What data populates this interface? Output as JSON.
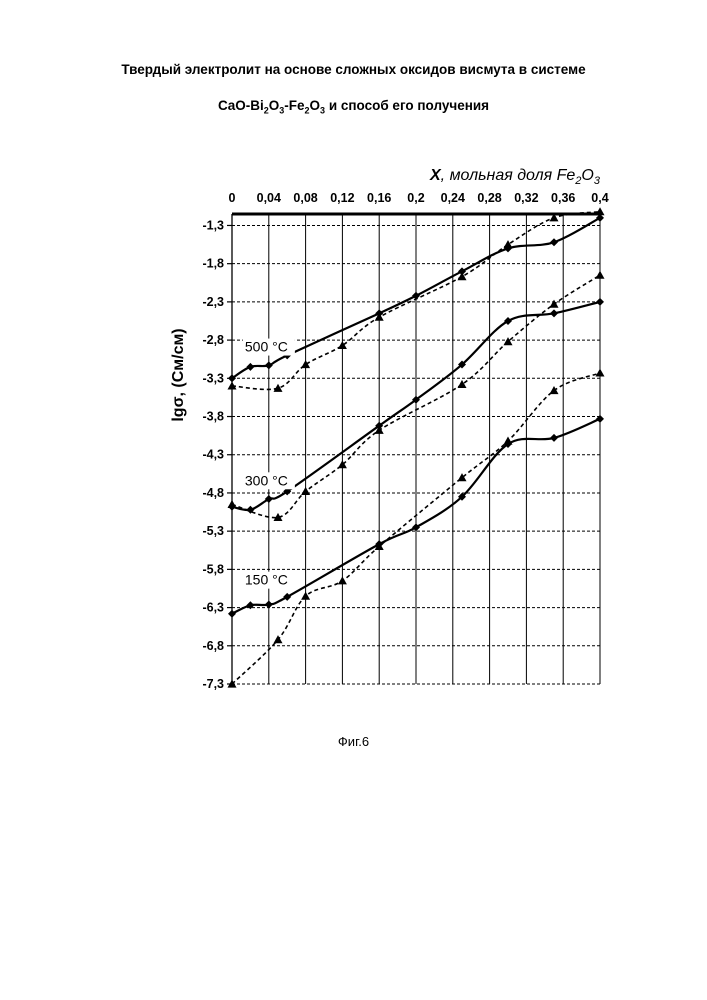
{
  "header": {
    "line1": "Твердый электролит на основе сложных оксидов висмута в системе",
    "line2_prefix": "CaO-Bi",
    "line2_sub1": "2",
    "line2_mid1": "O",
    "line2_sub2": "3",
    "line2_mid2": "-Fe",
    "line2_sub3": "2",
    "line2_mid3": "O",
    "line2_sub4": "3",
    "line2_suffix": "  и способ его получения"
  },
  "caption": "Фиг.6",
  "chart_data": {
    "type": "line",
    "x_axis": {
      "label_bold": "X",
      "label_text": ", мольная доля Fe",
      "label_sub1": "2",
      "label_o": "O",
      "label_sub2": "3",
      "position": "top",
      "range": [
        0,
        0.4
      ],
      "ticks": [
        0,
        0.04,
        0.08,
        0.12,
        0.16,
        0.2,
        0.24,
        0.28,
        0.32,
        0.36,
        0.4
      ],
      "tick_labels": [
        "0",
        "0,04",
        "0,08",
        "0,12",
        "0,16",
        "0,2",
        "0,24",
        "0,28",
        "0,32",
        "0,36",
        "0,4"
      ]
    },
    "y_axis": {
      "label": "lgσ, (См/см)",
      "range": [
        -7.3,
        -1.15
      ],
      "ticks": [
        -1.3,
        -1.8,
        -2.3,
        -2.8,
        -3.3,
        -3.8,
        -4.3,
        -4.8,
        -5.3,
        -5.8,
        -6.3,
        -6.8,
        -7.3
      ],
      "tick_labels": [
        "-1,3",
        "-1,8",
        "-2,3",
        "-2,8",
        "-3,3",
        "-3,8",
        "-4,3",
        "-4,8",
        "-5,3",
        "-5,8",
        "-6,3",
        "-6,8",
        "-7,3"
      ]
    },
    "grid": true,
    "annotations": [
      {
        "text": "500 °C",
        "x": 0.014,
        "y": -2.95
      },
      {
        "text": "300 °C",
        "x": 0.014,
        "y": -4.7
      },
      {
        "text": "150 °C",
        "x": 0.014,
        "y": -6.0
      }
    ],
    "series": [
      {
        "marker": "diamond",
        "style": "solid",
        "x": [
          0,
          0.02,
          0.04,
          0.06,
          0.16,
          0.2,
          0.25,
          0.3,
          0.35,
          0.4
        ],
        "y": [
          -3.3,
          -3.15,
          -3.13,
          -3.0,
          -2.45,
          -2.22,
          -1.9,
          -1.6,
          -1.52,
          -1.2
        ]
      },
      {
        "marker": "triangle",
        "style": "dashed",
        "x": [
          0,
          0.05,
          0.08,
          0.12,
          0.16,
          0.25,
          0.3,
          0.35,
          0.4
        ],
        "y": [
          -3.4,
          -3.43,
          -3.12,
          -2.87,
          -2.5,
          -1.97,
          -1.55,
          -1.2,
          -1.12
        ]
      },
      {
        "marker": "diamond",
        "style": "solid",
        "x": [
          0,
          0.02,
          0.04,
          0.06,
          0.16,
          0.2,
          0.25,
          0.3,
          0.35,
          0.4
        ],
        "y": [
          -4.98,
          -5.02,
          -4.88,
          -4.78,
          -3.92,
          -3.58,
          -3.12,
          -2.55,
          -2.45,
          -2.3
        ]
      },
      {
        "marker": "triangle",
        "style": "dashed",
        "x": [
          0,
          0.05,
          0.08,
          0.12,
          0.16,
          0.25,
          0.3,
          0.35,
          0.4
        ],
        "y": [
          -4.95,
          -5.12,
          -4.78,
          -4.43,
          -3.98,
          -3.38,
          -2.82,
          -2.33,
          -1.95
        ]
      },
      {
        "marker": "diamond",
        "style": "solid",
        "x": [
          0,
          0.02,
          0.04,
          0.06,
          0.16,
          0.2,
          0.25,
          0.3,
          0.35,
          0.4
        ],
        "y": [
          -6.38,
          -6.27,
          -6.26,
          -6.16,
          -5.47,
          -5.25,
          -4.85,
          -4.16,
          -4.08,
          -3.83
        ]
      },
      {
        "marker": "triangle",
        "style": "dashed",
        "x": [
          0,
          0.05,
          0.08,
          0.12,
          0.16,
          0.25,
          0.3,
          0.35,
          0.4
        ],
        "y": [
          -7.3,
          -6.72,
          -6.15,
          -5.95,
          -5.5,
          -4.6,
          -4.12,
          -3.46,
          -3.23
        ]
      }
    ]
  }
}
